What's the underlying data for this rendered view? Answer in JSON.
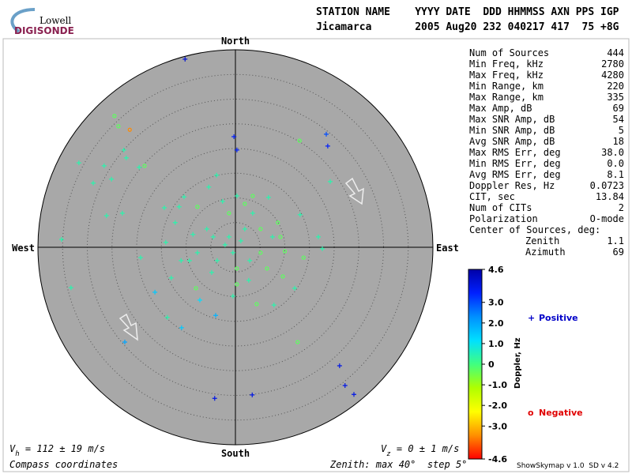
{
  "logo": {
    "top": "Lowell",
    "bottom": "DIGISONDE"
  },
  "header": {
    "columns": "STATION NAME    YYYY DATE  DDD HHMMSS AXN PPS IGP",
    "values": "Jicamarca       2005 Aug20 232 040217 417  75 +8G"
  },
  "stats": [
    {
      "label": "Num of Sources",
      "value": "444"
    },
    {
      "label": "Min Freq, kHz",
      "value": "2780"
    },
    {
      "label": "Max Freq, kHz",
      "value": "4280"
    },
    {
      "label": "Min Range, km",
      "value": "220"
    },
    {
      "label": "Max Range, km",
      "value": "335"
    },
    {
      "label": "Max Amp, dB",
      "value": "69"
    },
    {
      "label": "Max SNR Amp, dB",
      "value": "54"
    },
    {
      "label": "Min SNR Amp, dB",
      "value": "5"
    },
    {
      "label": "Avg SNR Amp, dB",
      "value": "18"
    },
    {
      "label": "Max RMS Err, deg",
      "value": "38.0"
    },
    {
      "label": "Min RMS Err, deg",
      "value": "0.0"
    },
    {
      "label": "Avg RMS Err, deg",
      "value": "8.1"
    },
    {
      "label": "Doppler Res, Hz",
      "value": "0.0723"
    },
    {
      "label": "CIT, sec",
      "value": "13.84"
    },
    {
      "label": "Num of CITs",
      "value": "2"
    },
    {
      "label": "Polarization",
      "value": "O-mode"
    }
  ],
  "center": {
    "title": "Center of Sources, deg:",
    "rows": [
      {
        "label": "Zenith",
        "value": "1.1"
      },
      {
        "label": "Azimuth",
        "value": "69"
      }
    ]
  },
  "legend": {
    "positive": {
      "symbol": "+",
      "label": "Positive",
      "color": "#0000c8"
    },
    "negative": {
      "symbol": "o",
      "label": "Negative",
      "color": "#e00000"
    }
  },
  "footer": {
    "vh": {
      "symbol": "V",
      "sub": "h",
      "text": " = 112 ± 19 m/s"
    },
    "vz": {
      "symbol": "V",
      "sub": "z",
      "text": " = 0 ± 1 m/s"
    },
    "coords": "Compass coordinates",
    "zenith": "Zenith: max 40°  step 5°",
    "version": "ShowSkymap v 1.0  SD v 4.2"
  },
  "chart_data": {
    "type": "skymap",
    "directions": {
      "north": "North",
      "south": "South",
      "east": "East",
      "west": "West"
    },
    "rlim": [
      0,
      40
    ],
    "rticks": [
      5,
      10,
      15,
      20,
      25,
      30,
      35
    ],
    "color_label": "Doppler, Hz",
    "clim": [
      -4.6,
      4.6
    ],
    "cticks": [
      4.6,
      {
        "value": 3,
        "label": "3.0"
      },
      {
        "value": 2,
        "label": "2.0"
      },
      {
        "value": 1,
        "label": "1.0"
      },
      0,
      {
        "value": -1,
        "label": "-1.0"
      },
      {
        "value": -2,
        "label": "-2.0"
      },
      {
        "value": -3,
        "label": "-3.0"
      },
      -4.6
    ],
    "colors": [
      "#0000a8",
      "#0020ff",
      "#0090ff",
      "#00e0ff",
      "#40ff80",
      "#b0ff00",
      "#ffff00",
      "#ff9000",
      "#ff0000"
    ],
    "points": {
      "east": [
        -10.2,
        -0.3,
        0.3,
        18.4,
        18.7,
        21.1,
        22.2,
        24,
        3.4,
        -4.2,
        -22.4,
        -10.9,
        -16.3,
        -4,
        -7.2,
        -21.4,
        -24.5,
        -23.7,
        -22.6,
        -22.1,
        -31.7,
        -26.6,
        -28.8,
        -18.4,
        -19.5,
        -25.1,
        -5.4,
        -3.8,
        0.3,
        -10.4,
        -26.1,
        -22.9,
        -35.2,
        -33.3,
        13,
        19.2,
        13.1,
        16.8,
        17.6,
        13.8,
        12.6,
        7.8,
        4.3,
        12,
        -13.8,
        -13,
        -14.1,
        -19.2,
        -14.4,
        -11.4,
        -7.7,
        3.5,
        8.6,
        9.1,
        10,
        6.4,
        2.9,
        -1.3,
        1.1,
        -0.5,
        -2.1,
        1.9,
        -4.5,
        -3.7,
        0.3,
        -7.7,
        -5.8,
        5.1,
        3.5,
        -1.3,
        2.7,
        -0.5,
        0.3,
        -9.3,
        -8.6,
        -4.8,
        5.1,
        7.5,
        -2.6,
        1.9,
        6.7,
        -12.2,
        -8,
        9.6,
        -11
      ],
      "north": [
        38.1,
        22.4,
        19.7,
        22.9,
        20.5,
        -24,
        -28,
        -29.8,
        -29.9,
        -30.6,
        -19.2,
        -16.3,
        -9.1,
        -13.8,
        -10.7,
        23.8,
        26.6,
        24.5,
        19.7,
        18.1,
        17.1,
        16.5,
        13,
        16.5,
        16.2,
        13.8,
        12.2,
        14.6,
        10.4,
        10.2,
        6.4,
        6.9,
        1.6,
        -8.2,
        21.6,
        13.3,
        6.6,
        2.1,
        -0.3,
        -2.1,
        -19.2,
        -11.7,
        -11.5,
        -8.3,
        -14.2,
        -6.2,
        1,
        -2.1,
        8,
        8.2,
        8.2,
        10.4,
        5,
        2.1,
        -0.8,
        -4.3,
        -2.7,
        2.1,
        1.3,
        -1.1,
        0.5,
        3.7,
        2.1,
        -2.7,
        -4.3,
        -1.1,
        3.7,
        3.7,
        6.9,
        6.9,
        -6.7,
        -9.9,
        -7.5,
        -2.7,
        2.6,
        -5.1,
        -1.1,
        2.1,
        9.3,
        8.8,
        10.1,
        5,
        -8.3,
        -5.9,
        -2.7
      ],
      "doppler": [
        4,
        3.5,
        3.5,
        3,
        3.5,
        3.8,
        3.8,
        3.8,
        3.8,
        3.8,
        2,
        1.5,
        1.5,
        1.8,
        1.2,
        -3.5,
        -0.3,
        -0.3,
        0.4,
        0.4,
        0.4,
        0.4,
        0.4,
        -0.3,
        0.4,
        0.4,
        0.4,
        0.4,
        0.4,
        0.4,
        0.4,
        0.4,
        0.4,
        0.4,
        -0.3,
        0.4,
        0.4,
        0.4,
        0.4,
        -0.3,
        -0.3,
        0.4,
        -0.3,
        0.4,
        0.4,
        0.4,
        0.4,
        0.4,
        0.4,
        0.4,
        -0.3,
        -0.3,
        -0.3,
        -0.3,
        -0.3,
        -0.3,
        0.4,
        0.4,
        0.4,
        0.4,
        0.4,
        0.4,
        0.4,
        0.4,
        -0.3,
        0.4,
        0.4,
        -0.3,
        0.4,
        -0.3,
        0.4,
        0.4,
        -0.3,
        0.4,
        0.4,
        0.4,
        -0.3,
        0.4,
        0.4,
        -0.3,
        0.4,
        0.4,
        -0.3,
        -0.3,
        0.4
      ]
    }
  }
}
